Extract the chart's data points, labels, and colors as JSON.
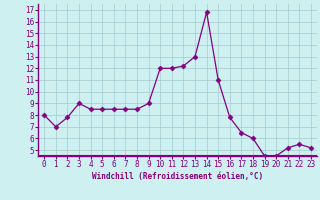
{
  "x": [
    0,
    1,
    2,
    3,
    4,
    5,
    6,
    7,
    8,
    9,
    10,
    11,
    12,
    13,
    14,
    15,
    16,
    17,
    18,
    19,
    20,
    21,
    22,
    23
  ],
  "y": [
    8.0,
    7.0,
    7.8,
    9.0,
    8.5,
    8.5,
    8.5,
    8.5,
    8.5,
    9.0,
    12.0,
    12.0,
    12.2,
    13.0,
    16.8,
    11.0,
    7.8,
    6.5,
    6.0,
    4.5,
    4.5,
    5.2,
    5.5,
    5.2
  ],
  "line_color": "#800080",
  "marker": "D",
  "marker_size": 2.5,
  "bg_color": "#cff0f0",
  "grid_color": "#a0cccc",
  "xlabel": "Windchill (Refroidissement éolien,°C)",
  "tick_color": "#800080",
  "xlim": [
    -0.5,
    23.5
  ],
  "ylim": [
    4.5,
    17.5
  ],
  "yticks": [
    5,
    6,
    7,
    8,
    9,
    10,
    11,
    12,
    13,
    14,
    15,
    16,
    17
  ],
  "xticks": [
    0,
    1,
    2,
    3,
    4,
    5,
    6,
    7,
    8,
    9,
    10,
    11,
    12,
    13,
    14,
    15,
    16,
    17,
    18,
    19,
    20,
    21,
    22,
    23
  ],
  "spine_color": "#800080",
  "xlabel_fontsize": 5.5,
  "tick_fontsize": 5.5
}
